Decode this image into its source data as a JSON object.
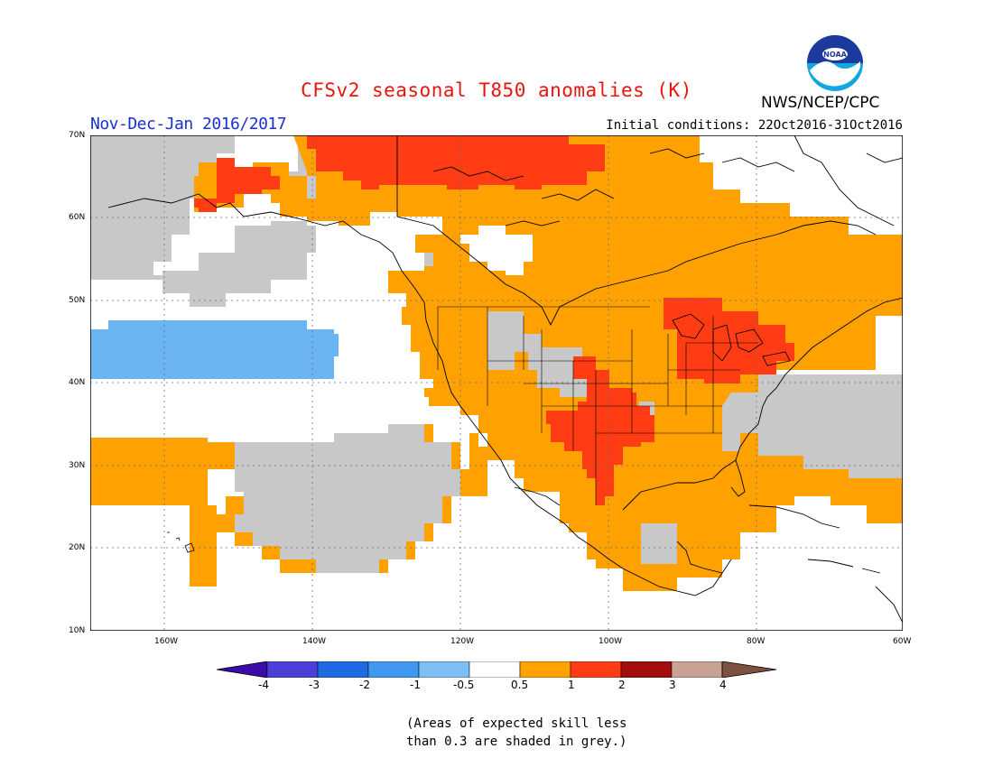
{
  "header": {
    "title": "CFSv2 seasonal T850 anomalies (K)",
    "period": "Nov-Dec-Jan 2016/2017",
    "initial_conditions": "Initial conditions: 22Oct2016-31Oct2016",
    "agency": "NWS/NCEP/CPC",
    "logo_text": "NOAA"
  },
  "map": {
    "region": "North America and Eastern Pacific",
    "lat_ticks": [
      "70N",
      "60N",
      "50N",
      "40N",
      "30N",
      "20N",
      "10N"
    ],
    "lon_ticks": [
      "160W",
      "140W",
      "120W",
      "100W",
      "80W",
      "60W"
    ],
    "grid": true,
    "colors": {
      "below_minus_0_5": "#6ab4f2",
      "near_normal": "#ffffff",
      "0_5_to_1": "#ffa100",
      "1_to_2": "#ff3c14",
      "low_skill": "#c8c8c8"
    }
  },
  "colorbar": {
    "labels": [
      "-4",
      "-3",
      "-2",
      "-1",
      "-0.5",
      "0.5",
      "1",
      "2",
      "3",
      "4"
    ],
    "colors": [
      "#3a0ca8",
      "#4b3fd6",
      "#1d6ae2",
      "#3f97f0",
      "#7dbef5",
      "#ffffff",
      "#ffa100",
      "#ff3c14",
      "#a30d0d",
      "#c8a294",
      "#7e5040"
    ]
  },
  "footnote": {
    "line1": "(Areas of expected skill less",
    "line2": "than 0.3 are shaded in grey.)"
  }
}
